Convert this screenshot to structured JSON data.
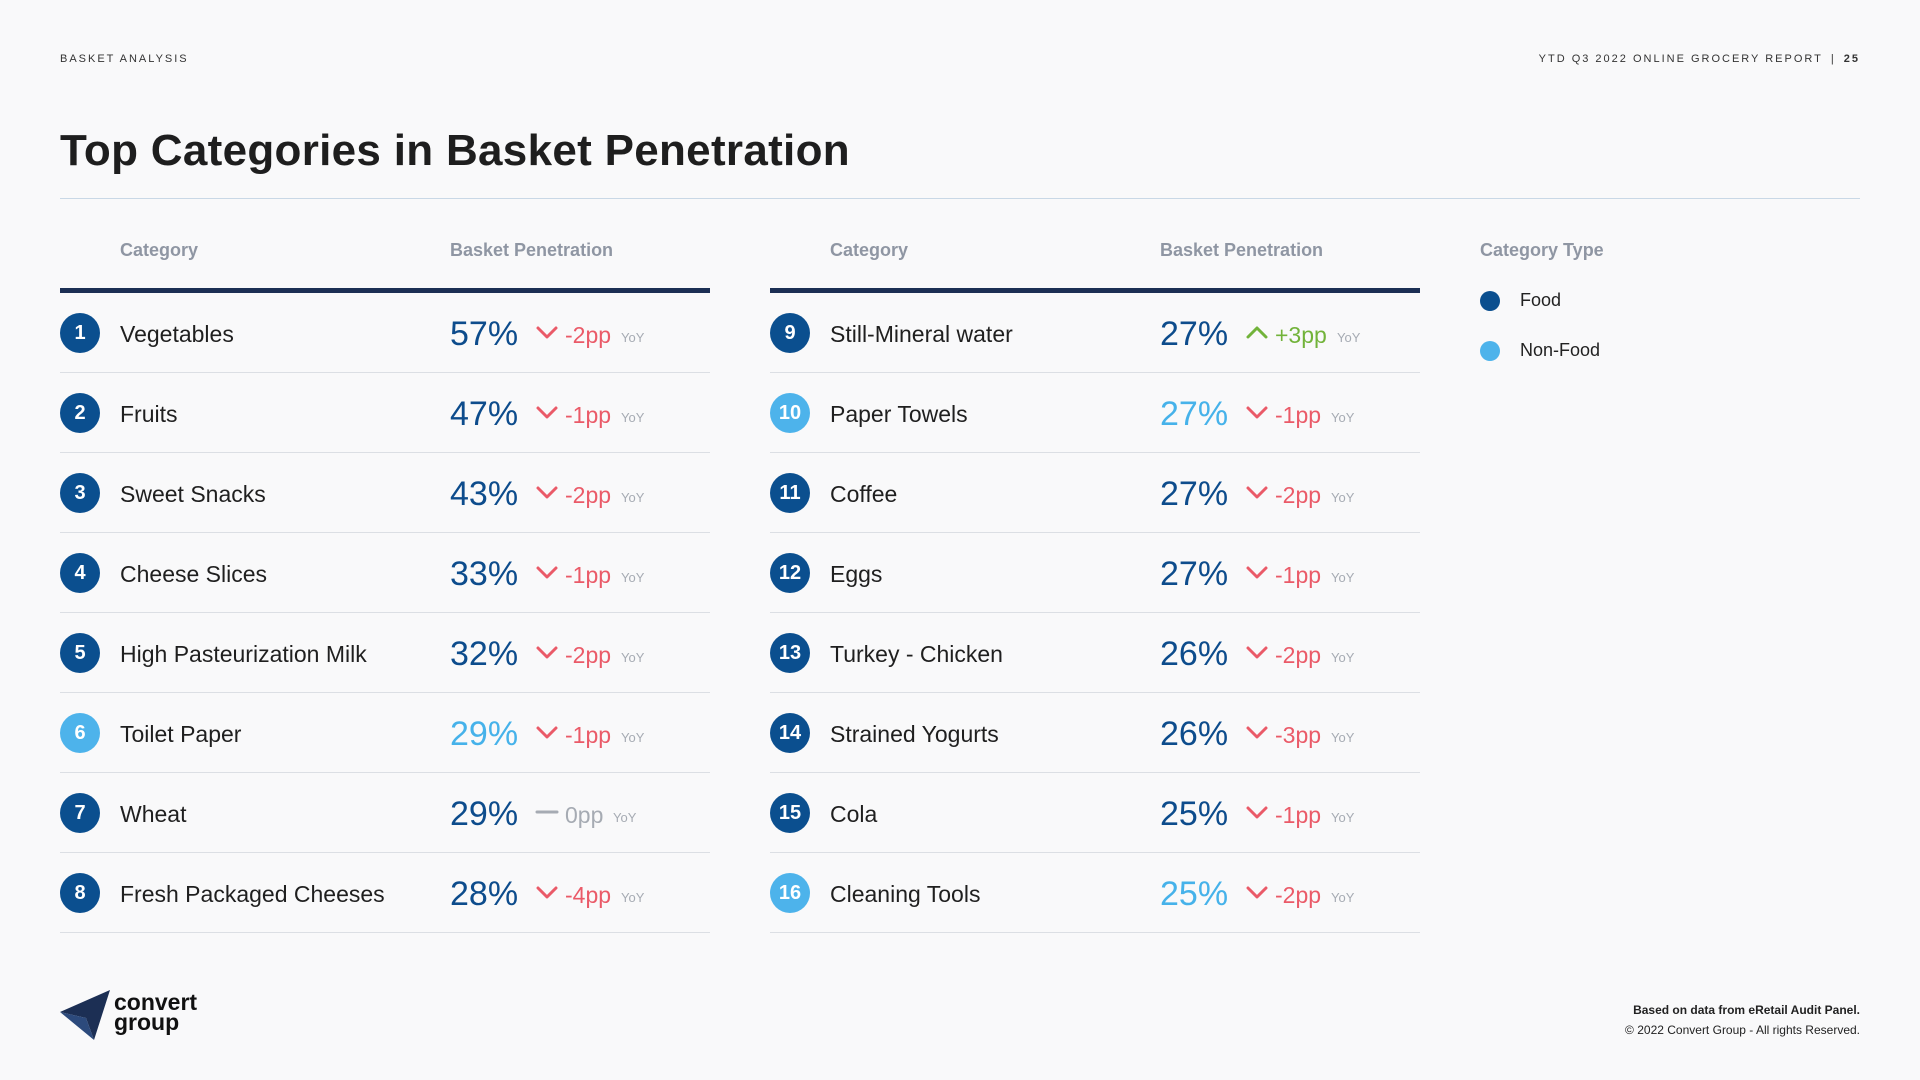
{
  "header": {
    "section": "BASKET ANALYSIS",
    "report": "YTD Q3 2022 ONLINE GROCERY REPORT",
    "separator": "|",
    "page": "25"
  },
  "title": "Top Categories in Basket Penetration",
  "columns": {
    "category": "Category",
    "penetration": "Basket Penetration"
  },
  "legend": {
    "title": "Category Type",
    "items": [
      {
        "label": "Food",
        "type": "food"
      },
      {
        "label": "Non-Food",
        "type": "nonfood"
      }
    ]
  },
  "colors": {
    "food": "#0b4f8f",
    "nonfood": "#4db3eb",
    "down": "#ea5a68",
    "up": "#72b33a",
    "flat": "#a6abb3",
    "header_rule": "#1c2f54"
  },
  "yoy_label": "YoY",
  "rows": [
    {
      "rank": "1",
      "category": "Vegetables",
      "penetration": "57%",
      "change": "-2pp",
      "trend": "down",
      "type": "food"
    },
    {
      "rank": "2",
      "category": "Fruits",
      "penetration": "47%",
      "change": "-1pp",
      "trend": "down",
      "type": "food"
    },
    {
      "rank": "3",
      "category": "Sweet Snacks",
      "penetration": "43%",
      "change": "-2pp",
      "trend": "down",
      "type": "food"
    },
    {
      "rank": "4",
      "category": "Cheese Slices",
      "penetration": "33%",
      "change": "-1pp",
      "trend": "down",
      "type": "food"
    },
    {
      "rank": "5",
      "category": "High Pasteurization Milk",
      "penetration": "32%",
      "change": "-2pp",
      "trend": "down",
      "type": "food"
    },
    {
      "rank": "6",
      "category": "Toilet Paper",
      "penetration": "29%",
      "change": "-1pp",
      "trend": "down",
      "type": "nonfood"
    },
    {
      "rank": "7",
      "category": "Wheat",
      "penetration": "29%",
      "change": "0pp",
      "trend": "flat",
      "type": "food"
    },
    {
      "rank": "8",
      "category": "Fresh Packaged Cheeses",
      "penetration": "28%",
      "change": "-4pp",
      "trend": "down",
      "type": "food"
    },
    {
      "rank": "9",
      "category": "Still-Mineral water",
      "penetration": "27%",
      "change": "+3pp",
      "trend": "up",
      "type": "food"
    },
    {
      "rank": "10",
      "category": "Paper Towels",
      "penetration": "27%",
      "change": "-1pp",
      "trend": "down",
      "type": "nonfood"
    },
    {
      "rank": "11",
      "category": "Coffee",
      "penetration": "27%",
      "change": "-2pp",
      "trend": "down",
      "type": "food"
    },
    {
      "rank": "12",
      "category": "Eggs",
      "penetration": "27%",
      "change": "-1pp",
      "trend": "down",
      "type": "food"
    },
    {
      "rank": "13",
      "category": "Turkey - Chicken",
      "penetration": "26%",
      "change": "-2pp",
      "trend": "down",
      "type": "food"
    },
    {
      "rank": "14",
      "category": "Strained Yogurts",
      "penetration": "26%",
      "change": "-3pp",
      "trend": "down",
      "type": "food"
    },
    {
      "rank": "15",
      "category": "Cola",
      "penetration": "25%",
      "change": "-1pp",
      "trend": "down",
      "type": "food"
    },
    {
      "rank": "16",
      "category": "Cleaning Tools",
      "penetration": "25%",
      "change": "-2pp",
      "trend": "down",
      "type": "nonfood"
    }
  ],
  "logo": {
    "line1": "convert",
    "line2": "group"
  },
  "footer": {
    "source": "Based on data from eRetail Audit Panel.",
    "copyright": "© 2022 Convert Group - All rights Reserved."
  }
}
